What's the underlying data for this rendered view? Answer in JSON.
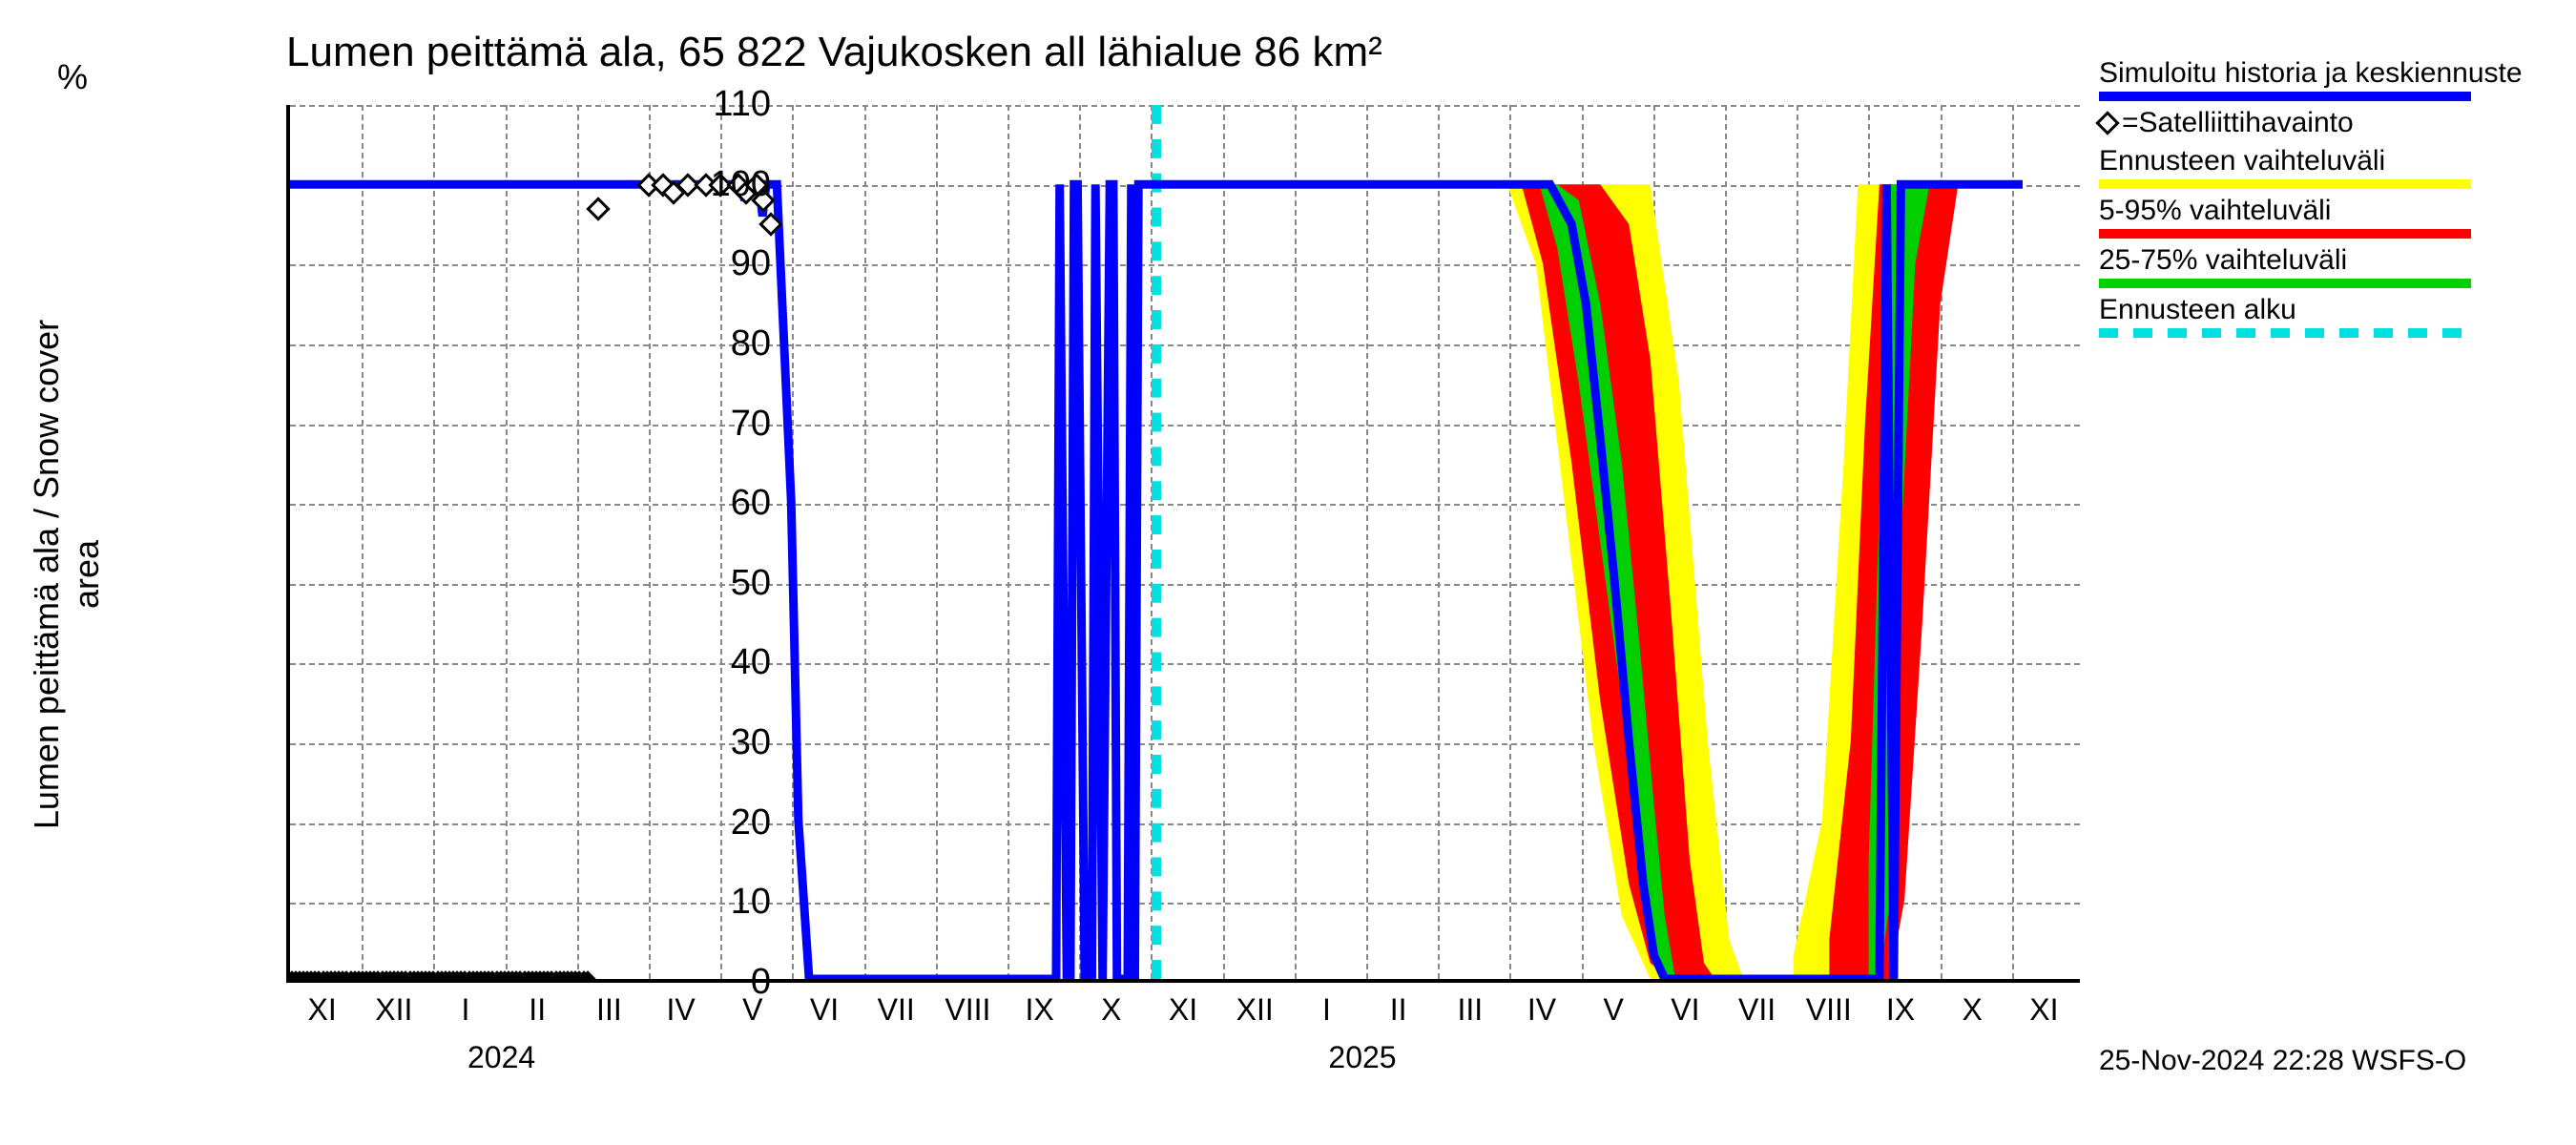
{
  "title": "Lumen peittämä ala, 65 822 Vajukosken all lähialue 86 km²",
  "ylabel": "Lumen peittämä ala / Snow cover area",
  "yunit": "%",
  "timestamp": "25-Nov-2024 22:28 WSFS-O",
  "chart": {
    "type": "line+band",
    "background_color": "#ffffff",
    "grid_color": "#808080",
    "axis_color": "#000000",
    "ylim": [
      0,
      110
    ],
    "yticks": [
      0,
      10,
      20,
      30,
      40,
      50,
      60,
      70,
      80,
      90,
      100,
      110
    ],
    "x_months": [
      "XI",
      "XII",
      "I",
      "II",
      "III",
      "IV",
      "V",
      "VI",
      "VII",
      "VIII",
      "IX",
      "X",
      "XI",
      "XII",
      "I",
      "II",
      "III",
      "IV",
      "V",
      "VI",
      "VII",
      "VIII",
      "IX",
      "X",
      "XI"
    ],
    "x_year_labels": [
      {
        "label": "2024",
        "at_month_index": 2.5
      },
      {
        "label": "2025",
        "at_month_index": 14.5
      }
    ],
    "n_months": 25,
    "title_fontsize": 44,
    "label_fontsize": 36,
    "tick_fontsize": 38,
    "legend": [
      {
        "label": "Simuloitu historia ja keskiennuste",
        "type": "line",
        "color": "#0000ff",
        "width": 10
      },
      {
        "label": "=Satelliittihavainto",
        "type": "marker",
        "marker": "diamond",
        "edge": "#000000",
        "fill": "#ffffff"
      },
      {
        "label": "Ennusteen vaihteluväli",
        "type": "line",
        "color": "#ffff00",
        "width": 10
      },
      {
        "label": "5-95% vaihteluväli",
        "type": "line",
        "color": "#ff0000",
        "width": 10
      },
      {
        "label": "25-75% vaihteluväli",
        "type": "line",
        "color": "#00d000",
        "width": 10
      },
      {
        "label": "Ennusteen alku",
        "type": "dash",
        "color": "#00e0e0",
        "width": 10
      }
    ],
    "colors": {
      "main_line": "#0000ff",
      "yellow_band": "#ffff00",
      "red_band": "#ff0000",
      "green_band": "#00d000",
      "forecast_start": "#00e0e0"
    },
    "forecast_start_month": 12.1,
    "main_line_points": [
      [
        -0.2,
        100
      ],
      [
        6.3,
        100
      ],
      [
        6.35,
        98
      ],
      [
        6.4,
        100
      ],
      [
        6.55,
        100
      ],
      [
        6.6,
        96
      ],
      [
        6.65,
        100
      ],
      [
        6.8,
        100
      ],
      [
        7.0,
        60
      ],
      [
        7.1,
        20
      ],
      [
        7.25,
        0
      ],
      [
        10.7,
        0
      ],
      [
        10.75,
        100
      ],
      [
        10.85,
        0
      ],
      [
        10.9,
        0
      ],
      [
        10.95,
        100
      ],
      [
        11.0,
        100
      ],
      [
        11.1,
        0
      ],
      [
        11.2,
        0
      ],
      [
        11.25,
        100
      ],
      [
        11.35,
        0
      ],
      [
        11.45,
        100
      ],
      [
        11.5,
        100
      ],
      [
        11.55,
        0
      ],
      [
        11.7,
        0
      ],
      [
        11.75,
        100
      ],
      [
        11.8,
        0
      ],
      [
        11.85,
        100
      ],
      [
        12.0,
        100
      ],
      [
        17.6,
        100
      ],
      [
        17.9,
        95
      ],
      [
        18.1,
        85
      ],
      [
        18.3,
        68
      ],
      [
        18.5,
        50
      ],
      [
        18.7,
        30
      ],
      [
        18.9,
        12
      ],
      [
        19.05,
        3
      ],
      [
        19.2,
        0
      ],
      [
        22.2,
        0
      ],
      [
        22.3,
        100
      ],
      [
        22.4,
        0
      ],
      [
        22.5,
        100
      ],
      [
        24.2,
        100
      ]
    ],
    "sat_points": [
      [
        4.3,
        97
      ],
      [
        5.0,
        100
      ],
      [
        5.2,
        100
      ],
      [
        5.35,
        99
      ],
      [
        5.55,
        100
      ],
      [
        5.8,
        100
      ],
      [
        6.0,
        100
      ],
      [
        6.25,
        100
      ],
      [
        6.35,
        99
      ],
      [
        6.5,
        100
      ],
      [
        6.6,
        98
      ],
      [
        6.7,
        95
      ]
    ],
    "sat_zero_strip": {
      "from_month": -0.2,
      "to_month": 4.2
    },
    "bands": {
      "spring2025": {
        "yellow": [
          [
            17.0,
            100,
            100
          ],
          [
            17.4,
            90,
            100
          ],
          [
            17.8,
            60,
            100
          ],
          [
            18.2,
            30,
            100
          ],
          [
            18.6,
            8,
            100
          ],
          [
            19.0,
            0,
            100
          ],
          [
            19.4,
            0,
            75
          ],
          [
            19.8,
            0,
            30
          ],
          [
            20.1,
            0,
            5
          ],
          [
            20.3,
            0,
            0
          ]
        ],
        "red": [
          [
            17.2,
            100,
            100
          ],
          [
            17.5,
            90,
            100
          ],
          [
            17.9,
            65,
            100
          ],
          [
            18.3,
            35,
            100
          ],
          [
            18.7,
            12,
            95
          ],
          [
            19.0,
            2,
            78
          ],
          [
            19.3,
            0,
            45
          ],
          [
            19.55,
            0,
            15
          ],
          [
            19.75,
            0,
            2
          ],
          [
            19.9,
            0,
            0
          ]
        ],
        "green": [
          [
            17.45,
            100,
            100
          ],
          [
            17.7,
            92,
            100
          ],
          [
            18.0,
            75,
            98
          ],
          [
            18.3,
            55,
            85
          ],
          [
            18.6,
            35,
            65
          ],
          [
            18.85,
            18,
            42
          ],
          [
            19.05,
            5,
            22
          ],
          [
            19.2,
            0,
            8
          ],
          [
            19.35,
            0,
            0
          ]
        ]
      },
      "autumn2025": {
        "yellow": [
          [
            21.0,
            0,
            3
          ],
          [
            21.4,
            0,
            20
          ],
          [
            21.7,
            0,
            65
          ],
          [
            21.9,
            0,
            100
          ],
          [
            22.0,
            0,
            100
          ],
          [
            22.3,
            5,
            100
          ],
          [
            22.6,
            40,
            100
          ],
          [
            22.9,
            80,
            100
          ],
          [
            23.2,
            100,
            100
          ],
          [
            24.2,
            100,
            100
          ]
        ],
        "red": [
          [
            21.5,
            0,
            5
          ],
          [
            21.8,
            0,
            30
          ],
          [
            22.0,
            0,
            70
          ],
          [
            22.2,
            0,
            100
          ],
          [
            22.35,
            0,
            100
          ],
          [
            22.55,
            10,
            100
          ],
          [
            22.8,
            45,
            100
          ],
          [
            23.05,
            85,
            100
          ],
          [
            23.3,
            100,
            100
          ],
          [
            24.2,
            100,
            100
          ]
        ],
        "green": [
          [
            22.05,
            0,
            15
          ],
          [
            22.2,
            0,
            60
          ],
          [
            22.35,
            10,
            100
          ],
          [
            22.5,
            55,
            100
          ],
          [
            22.7,
            90,
            100
          ],
          [
            22.9,
            100,
            100
          ],
          [
            24.2,
            100,
            100
          ]
        ]
      }
    }
  }
}
